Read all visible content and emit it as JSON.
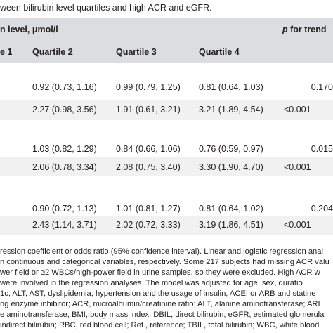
{
  "caption": "ween bilirubin level quartiles and high ACR and eGFR.",
  "header": {
    "group_label": "n level, μmol/l",
    "trend_label": "p for trend",
    "q1_label": "e 1",
    "q2_label": "Quartile 2",
    "q3_label": "Quartile 3",
    "q4_label": "Quartile 4"
  },
  "rows": [
    {
      "q2": "0.92 (0.73, 1.16)",
      "q3": "0.99 (0.79, 1.25)",
      "q4": "0.81 (0.64, 1.03)",
      "p": "0.170"
    },
    {
      "q2": "2.27 (0.98, 3.56)",
      "q3": "1.91 (0.61, 3.21)",
      "q4": "3.21 (1.89, 4.54)",
      "p": "<0.001"
    },
    {
      "q2": "1.03 (0.82, 1.29)",
      "q3": "0.84 (0.66, 1.06)",
      "q4": "0.76 (0.59, 0.97)",
      "p": "0.015"
    },
    {
      "q2": "2.06 (0.78, 3.34)",
      "q3": "2.08 (0.75, 3.40)",
      "q4": "3.30 (1.90, 4.70)",
      "p": "<0.001"
    },
    {
      "q2": "0.90 (0.72, 1.13)",
      "q3": "1.01 (0.81, 1.27)",
      "q4": "0.81 (0.64, 1.02)",
      "p": "0.204"
    },
    {
      "q2": "2.43 (1.14, 3.71)",
      "q3": "2.02 (0.72, 3.33)",
      "q4": "3.19 (1.86, 4.51)",
      "p": "<0.001"
    }
  ],
  "footnote": [
    "ression coefficient or odds ratio (95% confidence interval). Linear and logistic regression anal",
    "n continuous and categorical variables, respectively. Some 217 subjects had missing ACR valu",
    "wer field or ≥2 WBCs/high-power field in urine samples, so they were excluded. High ACR w",
    "were involved in the regression analyses. The model was adjusted for age, sex, duratio",
    "1c, ALT, AST, dyslipidemia, hypertension and the usage of insulin, ACEI or ARB and statine",
    "ng enzyme inhibitor; ACR, microalbumin/creatinine ratio; ALT, alanine aminotransferase; ARI",
    "e aminotransferase; BMI, body mass index; DBIL, direct bilirubin; eGFR, estimated glomerula",
    "indirect bilirubin; RBC, red blood cell; Ref., reference; TBIL, total bilirubin; WBC, white blood"
  ]
}
